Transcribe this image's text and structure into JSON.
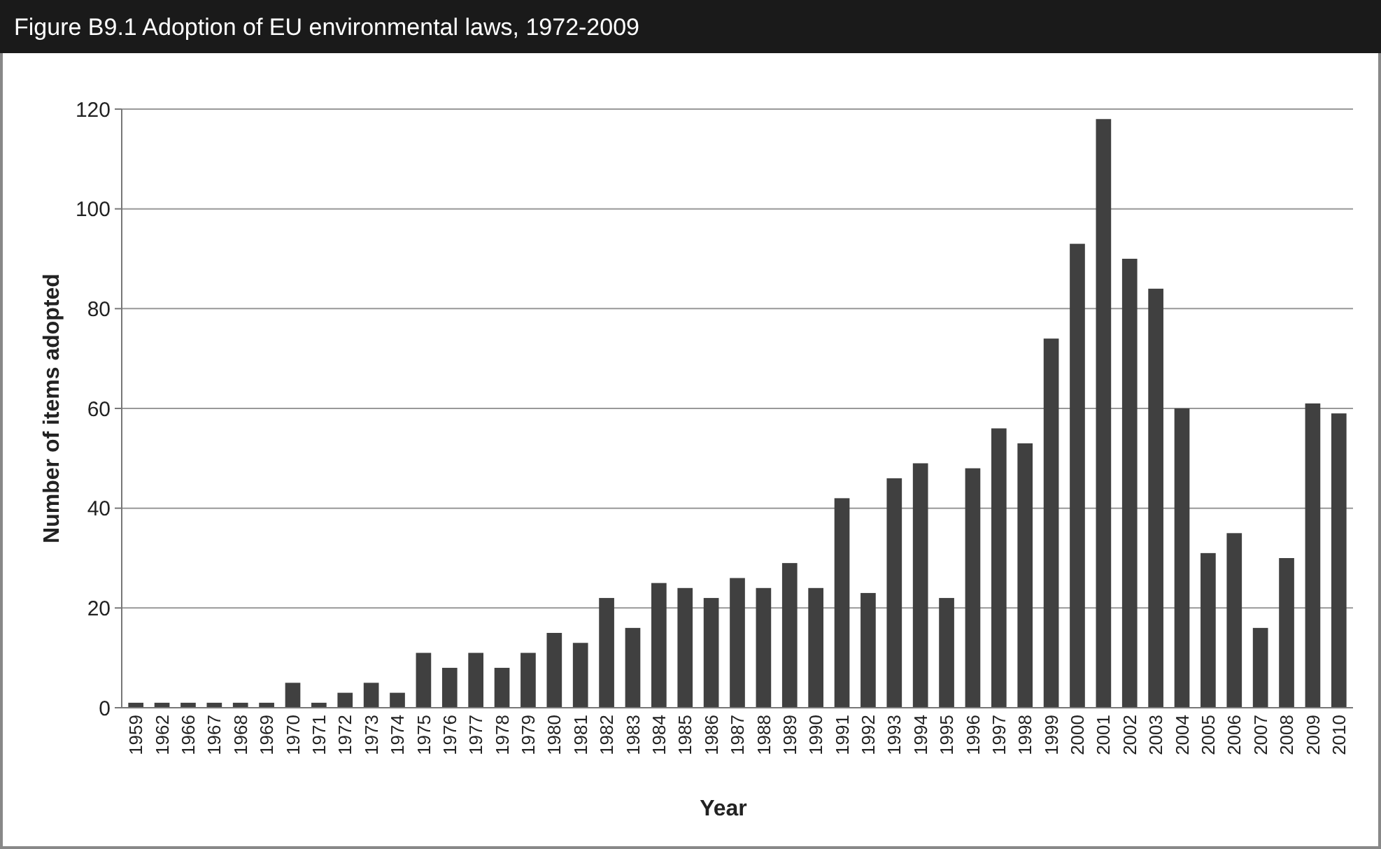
{
  "chart_data": {
    "type": "bar",
    "title": "Figure B9.1  Adoption of EU environmental laws, 1972-2009",
    "xlabel": "Year",
    "ylabel": "Number of items adopted",
    "categories": [
      "1959",
      "1962",
      "1966",
      "1967",
      "1968",
      "1969",
      "1970",
      "1971",
      "1972",
      "1973",
      "1974",
      "1975",
      "1976",
      "1977",
      "1978",
      "1979",
      "1980",
      "1981",
      "1982",
      "1983",
      "1984",
      "1985",
      "1986",
      "1987",
      "1988",
      "1989",
      "1990",
      "1991",
      "1992",
      "1993",
      "1994",
      "1995",
      "1996",
      "1997",
      "1998",
      "1999",
      "2000",
      "2001",
      "2002",
      "2003",
      "2004",
      "2005",
      "2006",
      "2007",
      "2008",
      "2009",
      "2010"
    ],
    "values": [
      1,
      1,
      1,
      1,
      1,
      1,
      5,
      1,
      3,
      5,
      3,
      11,
      8,
      11,
      8,
      11,
      15,
      13,
      22,
      16,
      25,
      24,
      22,
      26,
      24,
      29,
      24,
      42,
      23,
      46,
      49,
      22,
      48,
      56,
      53,
      74,
      93,
      118,
      90,
      84,
      60,
      31,
      35,
      16,
      30,
      61,
      59
    ],
    "color": "#404040",
    "ylim": [
      0,
      120
    ],
    "yticks": [
      0,
      20,
      40,
      60,
      80,
      100,
      120
    ],
    "grid": "y"
  }
}
